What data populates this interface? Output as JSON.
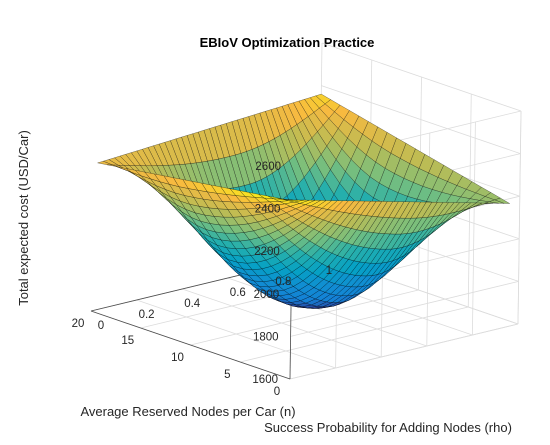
{
  "chart_data": {
    "type": "surface3d",
    "title": "EBIoV Optimization Practice",
    "xlabel": "Average Reserved Nodes per Car (n)",
    "ylabel": "Success Probability for Adding Nodes (rho)",
    "zlabel": "Total expected cost (USD/Car)",
    "xlim": [
      0,
      20
    ],
    "ylim": [
      0,
      1
    ],
    "zlim": [
      1600,
      2600
    ],
    "xticks": [
      "0",
      "5",
      "10",
      "15",
      "20"
    ],
    "yticks": [
      "0",
      "0.2",
      "0.4",
      "0.6",
      "0.8",
      "1"
    ],
    "zticks": [
      "1600",
      "1800",
      "2000",
      "2200",
      "2400",
      "2600"
    ],
    "colormap": "parula",
    "grid": true,
    "surface": {
      "n_range": [
        1,
        20
      ],
      "rho_range": [
        0.02,
        1
      ],
      "corner_values": [
        {
          "n": 1,
          "rho": 0.02,
          "cost": 2420
        },
        {
          "n": 1,
          "rho": 1,
          "cost": 2150
        },
        {
          "n": 20,
          "rho": 0.02,
          "cost": 2290
        },
        {
          "n": 20,
          "rho": 1,
          "cost": 2360
        }
      ],
      "minimum": {
        "n": 12,
        "rho": 0.6,
        "cost": 1600
      }
    }
  }
}
